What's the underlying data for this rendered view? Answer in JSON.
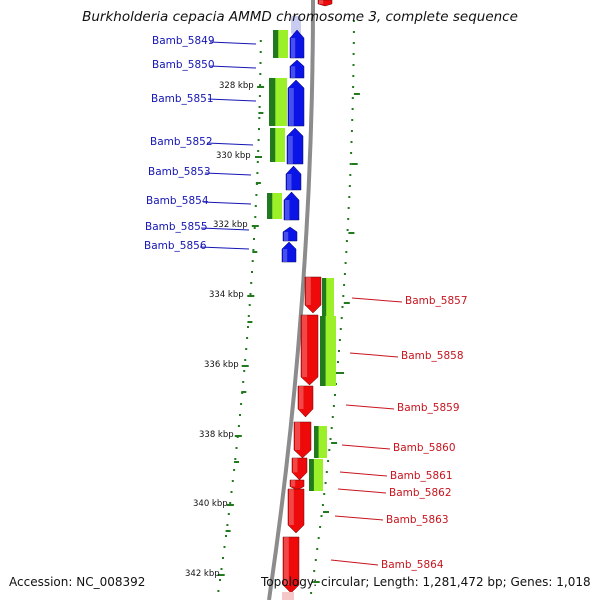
{
  "title": "Burkholderia cepacia AMMD chromosome 3, complete sequence",
  "accession": "Accession: NC_008392",
  "summary": "Topology: circular; Length: 1,281,472 bp; Genes: 1,018",
  "colors": {
    "forward_strand": "#0a14e6",
    "reverse_strand": "#ee0a0a",
    "orf_light": "#9cf02a",
    "orf_dark": "#217a1e",
    "backbone": "#8c8c8c",
    "tick": "#217a1e",
    "label_left": "#1414b4",
    "label_right": "#c8141e"
  },
  "kbp_ticks": [
    {
      "label": "328 kbp",
      "side": "left"
    },
    {
      "label": "330 kbp",
      "side": "left"
    },
    {
      "label": "332 kbp",
      "side": "left"
    },
    {
      "label": "334 kbp",
      "side": "left"
    },
    {
      "label": "336 kbp",
      "side": "left"
    },
    {
      "label": "338 kbp",
      "side": "left"
    },
    {
      "label": "340 kbp",
      "side": "left"
    },
    {
      "label": "342 kbp",
      "side": "left"
    }
  ],
  "genes": [
    {
      "name": "Bamb_5849",
      "strand": "forward"
    },
    {
      "name": "Bamb_5850",
      "strand": "forward"
    },
    {
      "name": "Bamb_5851",
      "strand": "forward"
    },
    {
      "name": "Bamb_5852",
      "strand": "forward"
    },
    {
      "name": "Bamb_5853",
      "strand": "forward"
    },
    {
      "name": "Bamb_5854",
      "strand": "forward"
    },
    {
      "name": "Bamb_5855",
      "strand": "forward"
    },
    {
      "name": "Bamb_5856",
      "strand": "forward"
    },
    {
      "name": "Bamb_5857",
      "strand": "reverse"
    },
    {
      "name": "Bamb_5858",
      "strand": "reverse"
    },
    {
      "name": "Bamb_5859",
      "strand": "reverse"
    },
    {
      "name": "Bamb_5860",
      "strand": "reverse"
    },
    {
      "name": "Bamb_5861",
      "strand": "reverse"
    },
    {
      "name": "Bamb_5862",
      "strand": "reverse"
    },
    {
      "name": "Bamb_5863",
      "strand": "reverse"
    },
    {
      "name": "Bamb_5864",
      "strand": "reverse"
    }
  ]
}
